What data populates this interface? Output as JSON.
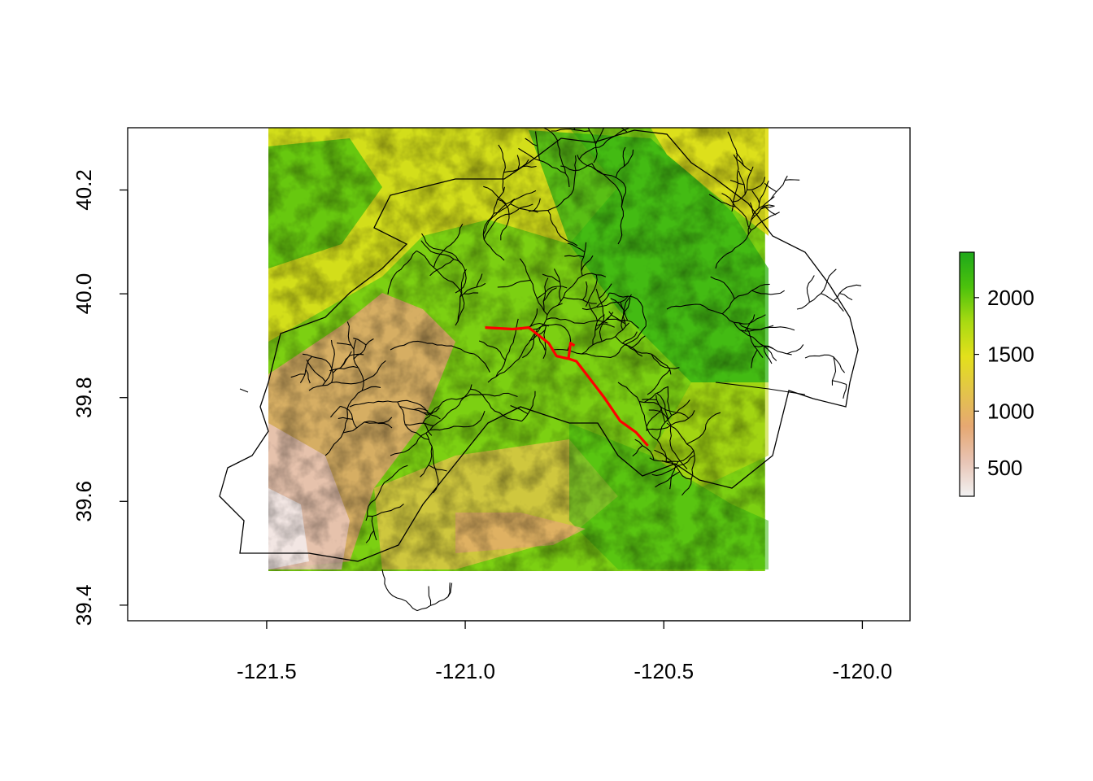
{
  "chart_data": {
    "type": "heatmap",
    "title": "",
    "xlabel": "",
    "ylabel": "",
    "xlim": [
      -121.85,
      -119.88
    ],
    "ylim": [
      39.37,
      40.32
    ],
    "x_ticks": [
      -121.5,
      -121.0,
      -120.5,
      -120.0
    ],
    "x_tick_labels": [
      "-121.5",
      "-121.0",
      "-120.5",
      "-120.0"
    ],
    "y_ticks": [
      39.4,
      39.6,
      39.8,
      40.0,
      40.2
    ],
    "y_tick_labels": [
      "39.4",
      "39.6",
      "39.8",
      "40.0",
      "40.2"
    ],
    "raster_extent": {
      "xmin": -121.5,
      "xmax": -120.245,
      "ymin": 39.465,
      "ymax": 40.32
    },
    "legend": {
      "placement": "right",
      "range": [
        250,
        2400
      ],
      "ticks": [
        500,
        1000,
        1500,
        2000
      ],
      "tick_labels": [
        "500",
        "1000",
        "1500",
        "2000"
      ],
      "colors": [
        "#f2f2f2",
        "#e8c4b4",
        "#e6a872",
        "#e3c44a",
        "#e3e01c",
        "#a9da12",
        "#4cc20c",
        "#1ea81a"
      ]
    },
    "highlight_route": {
      "color": "#ff0000",
      "points": [
        [
          -120.95,
          39.935
        ],
        [
          -120.88,
          39.932
        ],
        [
          -120.84,
          39.935
        ],
        [
          -120.79,
          39.905
        ],
        [
          -120.77,
          39.88
        ],
        [
          -120.74,
          39.875
        ],
        [
          -120.72,
          39.87
        ],
        [
          -120.69,
          39.84
        ],
        [
          -120.65,
          39.8
        ],
        [
          -120.61,
          39.755
        ],
        [
          -120.57,
          39.733
        ],
        [
          -120.54,
          39.707
        ]
      ],
      "branch": [
        [
          -120.74,
          39.875
        ],
        [
          -120.735,
          39.905
        ],
        [
          -120.725,
          39.9
        ]
      ]
    }
  }
}
